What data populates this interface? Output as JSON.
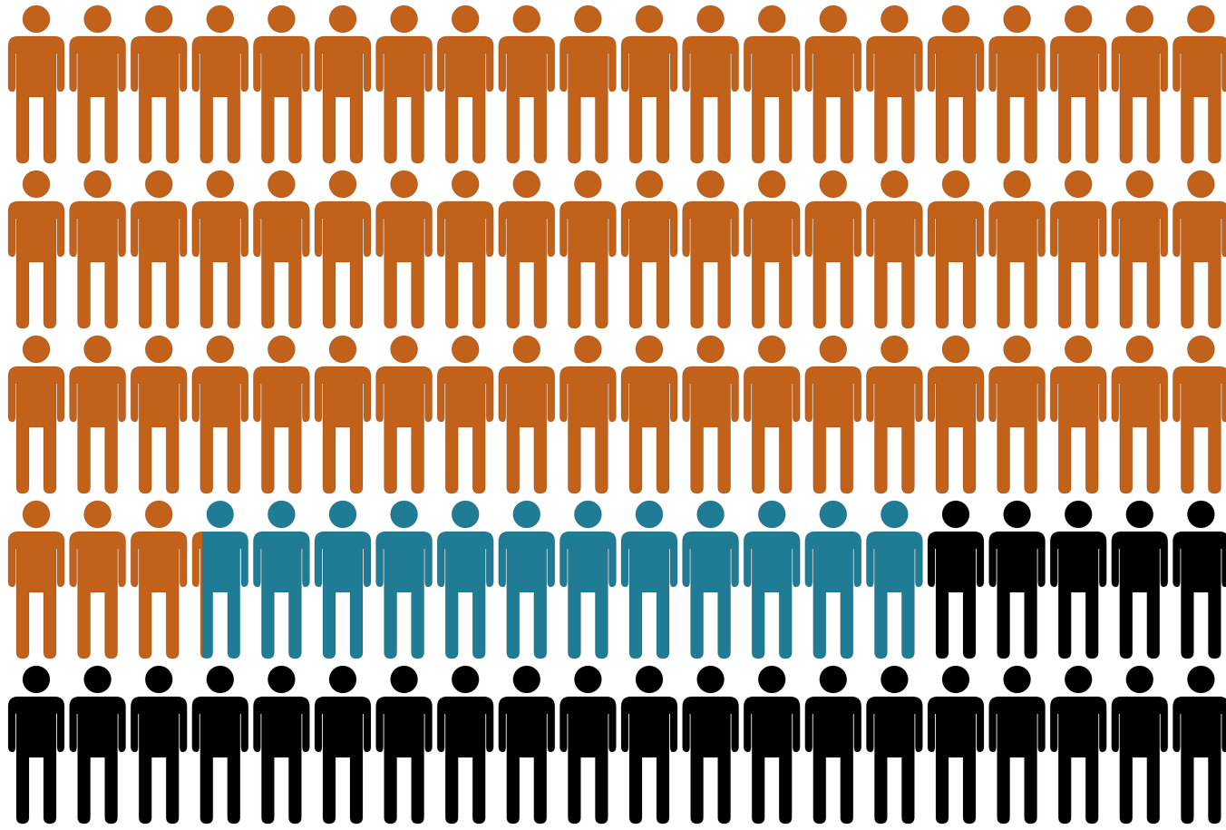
{
  "chart_data": {
    "type": "pictogram",
    "layout": {
      "rows": 5,
      "columns": 20,
      "fill_order": "row-major"
    },
    "total_icons": 100,
    "unit": "people",
    "series": [
      {
        "value": 63.2,
        "color": "#c26119"
      },
      {
        "value": 11.8,
        "color": "#207c95"
      },
      {
        "value": 25.0,
        "color": "#000000"
      }
    ],
    "icon": "person-icon"
  }
}
